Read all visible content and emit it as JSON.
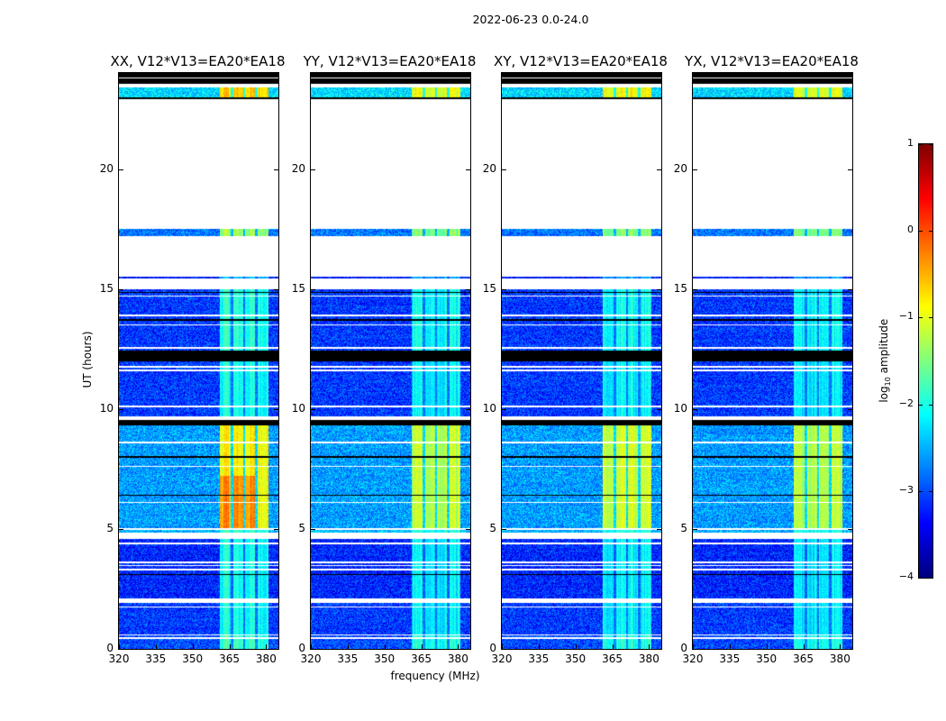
{
  "chart_data": {
    "type": "heatmap",
    "title": "2022-06-23 0.0-24.0",
    "xlabel": "frequency (MHz)",
    "ylabel": "UT (hours)",
    "xlim": [
      320,
      385
    ],
    "ylim": [
      0,
      24
    ],
    "xticks": [
      "320",
      "335",
      "350",
      "365",
      "380"
    ],
    "xtick_values": [
      320,
      335,
      350,
      365,
      380
    ],
    "yticks": [
      "0",
      "5",
      "10",
      "15",
      "20"
    ],
    "ytick_values": [
      0,
      5,
      10,
      15,
      20
    ],
    "colorbar": {
      "label": "log₁₀ amplitude",
      "label_main": "log",
      "label_sub": "10",
      "label_rest": " amplitude",
      "range": [
        -4,
        1
      ],
      "ticks": [
        "1",
        "0",
        "−1",
        "−2",
        "−3",
        "−4"
      ],
      "tick_values": [
        1,
        0,
        -1,
        -2,
        -3,
        -4
      ],
      "colormap": "jet"
    },
    "band_mhz": [
      361,
      381
    ],
    "subband_gaps_mhz": [
      366,
      371,
      376
    ],
    "segments": [
      {
        "t": [
          0.0,
          0.6
        ],
        "kind": "data",
        "base": -3.0,
        "band": -2.0
      },
      {
        "t": [
          0.6,
          1.9
        ],
        "kind": "data",
        "base": -3.1,
        "band": -2.2
      },
      {
        "t": [
          1.9,
          2.1
        ],
        "kind": "blank"
      },
      {
        "t": [
          2.1,
          4.6
        ],
        "kind": "data",
        "base": -3.2,
        "band": -2.2
      },
      {
        "t": [
          4.6,
          4.85
        ],
        "kind": "blank"
      },
      {
        "t": [
          4.85,
          4.95
        ],
        "kind": "data",
        "base": -2.5,
        "band": -2.0
      },
      {
        "t": [
          4.95,
          5.05
        ],
        "kind": "blank"
      },
      {
        "t": [
          5.05,
          9.3
        ],
        "kind": "data",
        "base": -2.6,
        "band": -1.2
      },
      {
        "t": [
          9.3,
          9.55
        ],
        "kind": "flag"
      },
      {
        "t": [
          9.55,
          9.7
        ],
        "kind": "blank"
      },
      {
        "t": [
          9.7,
          12.0
        ],
        "kind": "data",
        "base": -3.1,
        "band": -2.2
      },
      {
        "t": [
          12.0,
          12.45
        ],
        "kind": "flag"
      },
      {
        "t": [
          12.45,
          15.0
        ],
        "kind": "data",
        "base": -3.1,
        "band": -2.1
      },
      {
        "t": [
          15.0,
          15.45
        ],
        "kind": "blank"
      },
      {
        "t": [
          15.45,
          15.52
        ],
        "kind": "data",
        "base": -3.3,
        "band": -2.6
      },
      {
        "t": [
          15.52,
          17.2
        ],
        "kind": "blank"
      },
      {
        "t": [
          17.2,
          17.5
        ],
        "kind": "data",
        "base": -2.8,
        "band": -1.5
      },
      {
        "t": [
          17.5,
          22.9
        ],
        "kind": "blank"
      },
      {
        "t": [
          22.9,
          23.0
        ],
        "kind": "flag"
      },
      {
        "t": [
          23.0,
          23.4
        ],
        "kind": "data",
        "base": -2.3,
        "band": -1.0
      },
      {
        "t": [
          23.4,
          23.55
        ],
        "kind": "blank"
      },
      {
        "t": [
          23.55,
          24.0
        ],
        "kind": "flag"
      }
    ],
    "lines": [
      {
        "t": 0.45,
        "kind": "blank"
      },
      {
        "t": 0.58,
        "kind": "blank"
      },
      {
        "t": 1.75,
        "kind": "blank"
      },
      {
        "t": 3.1,
        "kind": "flag"
      },
      {
        "t": 3.3,
        "kind": "blank"
      },
      {
        "t": 3.48,
        "kind": "blank"
      },
      {
        "t": 3.6,
        "kind": "blank"
      },
      {
        "t": 4.4,
        "kind": "blank"
      },
      {
        "t": 6.1,
        "kind": "blank"
      },
      {
        "t": 6.4,
        "kind": "flag"
      },
      {
        "t": 7.6,
        "kind": "blank"
      },
      {
        "t": 8.0,
        "kind": "flag"
      },
      {
        "t": 8.6,
        "kind": "blank"
      },
      {
        "t": 10.1,
        "kind": "blank"
      },
      {
        "t": 11.6,
        "kind": "blank"
      },
      {
        "t": 11.75,
        "kind": "blank"
      },
      {
        "t": 12.55,
        "kind": "blank"
      },
      {
        "t": 13.5,
        "kind": "blank"
      },
      {
        "t": 13.7,
        "kind": "flag"
      },
      {
        "t": 13.9,
        "kind": "blank"
      },
      {
        "t": 14.7,
        "kind": "blank"
      },
      {
        "t": 14.85,
        "kind": "flag"
      },
      {
        "t": 23.8,
        "kind": "blank"
      }
    ],
    "panels": [
      {
        "title": "XX, V12*V13=EA20*EA18",
        "band_boost": 0.35
      },
      {
        "title": "YY, V12*V13=EA20*EA18",
        "band_boost": 0.0
      },
      {
        "title": "XY, V12*V13=EA20*EA18",
        "band_boost": 0.1
      },
      {
        "title": "YX, V12*V13=EA20*EA18",
        "band_boost": 0.0
      }
    ]
  }
}
